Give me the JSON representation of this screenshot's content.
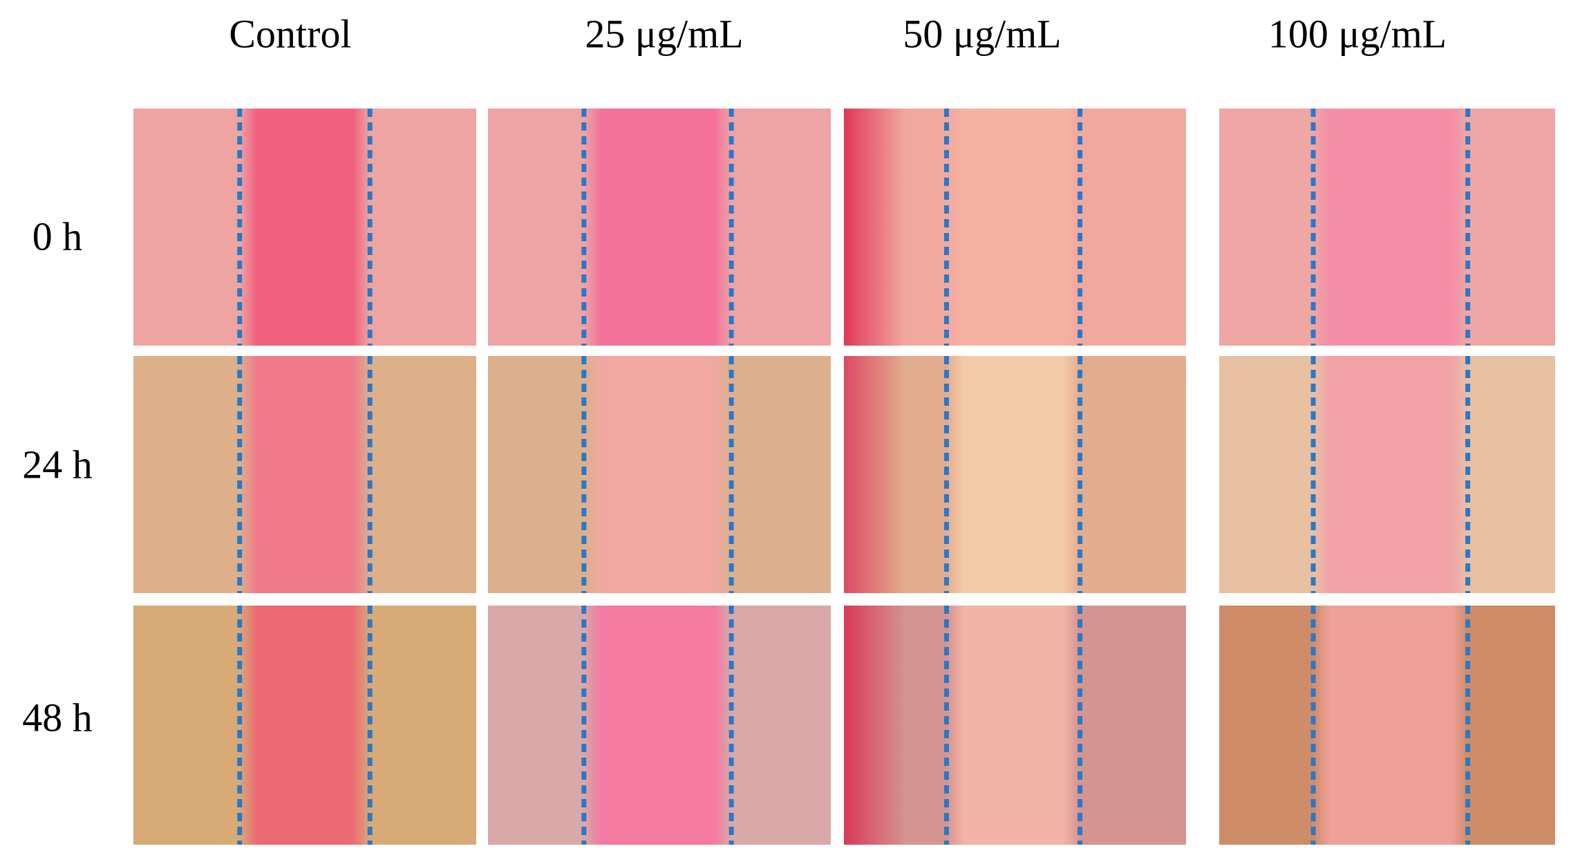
{
  "columns": [
    "Control",
    "25 μg/mL",
    "50 μg/mL",
    "100 μg/mL"
  ],
  "rows": [
    "0 h",
    "24 h",
    "48 h"
  ]
}
